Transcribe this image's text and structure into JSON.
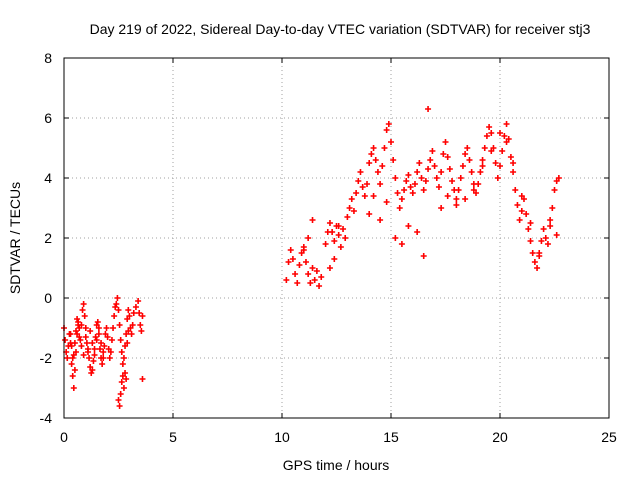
{
  "chart_data": {
    "type": "scatter",
    "title": "Day 219 of 2022, Sidereal Day-to-day VTEC variation (SDTVAR) for receiver stj3",
    "xlabel": "GPS time / hours",
    "ylabel": "SDTVAR / TECUs",
    "xlim": [
      0,
      25
    ],
    "ylim": [
      -4,
      8
    ],
    "xticks": [
      0,
      5,
      10,
      15,
      20,
      25
    ],
    "yticks": [
      -4,
      -2,
      0,
      2,
      4,
      6,
      8
    ],
    "grid": true,
    "marker": "+",
    "color": "#ff0000",
    "series": [
      {
        "name": "SDTVAR",
        "x": [
          0.0,
          0.05,
          0.1,
          0.15,
          0.2,
          0.25,
          0.3,
          0.35,
          0.4,
          0.45,
          0.5,
          0.55,
          0.6,
          0.65,
          0.7,
          0.75,
          0.8,
          0.85,
          0.9,
          0.95,
          1.0,
          1.05,
          1.1,
          1.15,
          1.2,
          1.25,
          1.3,
          1.35,
          1.4,
          1.45,
          1.5,
          1.55,
          1.6,
          1.65,
          1.7,
          1.75,
          1.8,
          1.85,
          1.9,
          1.95,
          2.0,
          2.05,
          2.1,
          2.15,
          2.2,
          2.25,
          2.3,
          2.35,
          2.4,
          2.45,
          2.5,
          2.55,
          2.6,
          2.65,
          2.7,
          2.75,
          2.8,
          2.85,
          2.9,
          2.95,
          3.0,
          3.05,
          3.1,
          3.15,
          3.2,
          3.3,
          3.4,
          3.45,
          3.5,
          3.55,
          3.6,
          0.3,
          0.35,
          0.4,
          0.45,
          0.5,
          0.55,
          0.6,
          0.65,
          0.7,
          0.8,
          0.9,
          1.0,
          1.1,
          1.2,
          1.3,
          1.4,
          1.5,
          1.6,
          1.7,
          1.8,
          2.5,
          2.55,
          2.6,
          2.65,
          2.7,
          2.75,
          2.8,
          2.85,
          2.9,
          2.95,
          3.6,
          10.2,
          10.3,
          10.4,
          10.5,
          10.6,
          10.7,
          10.8,
          10.9,
          11.0,
          11.1,
          11.2,
          11.3,
          11.4,
          11.5,
          11.6,
          11.7,
          11.8,
          12.0,
          12.1,
          12.2,
          12.3,
          12.4,
          12.5,
          12.6,
          12.7,
          12.8,
          12.9,
          13.0,
          13.1,
          13.2,
          13.3,
          13.4,
          13.5,
          13.6,
          13.7,
          13.8,
          13.9,
          14.0,
          14.1,
          14.2,
          14.3,
          14.4,
          14.5,
          14.6,
          14.7,
          14.8,
          14.9,
          15.0,
          15.1,
          15.2,
          15.3,
          15.4,
          15.5,
          15.6,
          15.7,
          15.8,
          15.9,
          16.0,
          16.1,
          16.2,
          16.3,
          16.4,
          16.5,
          16.6,
          16.7,
          16.8,
          16.9,
          17.0,
          17.1,
          17.2,
          17.3,
          17.4,
          17.5,
          17.6,
          17.7,
          17.8,
          17.9,
          18.0,
          18.1,
          18.2,
          18.3,
          18.4,
          18.5,
          18.6,
          18.7,
          18.8,
          18.9,
          19.0,
          19.1,
          19.2,
          19.3,
          19.4,
          19.5,
          19.6,
          19.7,
          19.8,
          19.9,
          20.0,
          20.1,
          20.2,
          20.3,
          20.4,
          20.5,
          20.6,
          20.7,
          20.8,
          20.9,
          21.0,
          21.1,
          21.2,
          21.3,
          21.4,
          21.5,
          21.6,
          21.7,
          21.8,
          21.9,
          22.0,
          22.1,
          22.2,
          22.3,
          22.4,
          22.5,
          22.6,
          22.7,
          11.0,
          11.2,
          11.4,
          12.2,
          12.4,
          12.6,
          14.0,
          14.2,
          14.5,
          14.8,
          15.2,
          15.5,
          15.8,
          16.2,
          16.5,
          16.7,
          17.3,
          17.6,
          18.0,
          18.4,
          18.8,
          19.2,
          19.6,
          20.0,
          20.3,
          20.6,
          21.0,
          21.4,
          21.8,
          22.3,
          22.6
        ],
        "y": [
          -1.0,
          -1.4,
          -1.8,
          -2.0,
          -1.6,
          -1.2,
          -1.5,
          -2.2,
          -2.6,
          -3.0,
          -2.4,
          -1.8,
          -1.2,
          -0.8,
          -1.0,
          -1.4,
          -0.9,
          -0.4,
          -0.2,
          -0.6,
          -1.0,
          -1.5,
          -1.8,
          -2.0,
          -2.3,
          -2.5,
          -2.4,
          -2.1,
          -1.7,
          -1.3,
          -0.9,
          -0.8,
          -1.2,
          -1.7,
          -2.0,
          -2.2,
          -2.0,
          -1.6,
          -1.2,
          -1.0,
          -1.3,
          -1.7,
          -2.0,
          -1.8,
          -1.4,
          -1.0,
          -0.6,
          -0.3,
          -0.2,
          0.0,
          -0.4,
          -0.9,
          -1.4,
          -1.8,
          -2.2,
          -2.0,
          -1.6,
          -1.2,
          -0.7,
          -0.4,
          -0.6,
          -1.0,
          -1.2,
          -0.9,
          -0.5,
          -0.3,
          -0.1,
          -0.5,
          -0.9,
          -1.1,
          -0.6,
          -1.2,
          -1.6,
          -2.0,
          -1.9,
          -1.5,
          -1.1,
          -0.7,
          -0.9,
          -1.3,
          -1.6,
          -1.9,
          -1.3,
          -1.7,
          -1.1,
          -1.5,
          -1.9,
          -1.4,
          -1.0,
          -1.5,
          -1.8,
          -3.4,
          -3.6,
          -3.2,
          -2.8,
          -2.6,
          -3.0,
          -2.5,
          -2.7,
          -1.5,
          -1.1,
          -2.7,
          0.6,
          1.2,
          1.6,
          1.3,
          0.8,
          0.5,
          1.1,
          1.5,
          1.7,
          1.2,
          0.8,
          0.5,
          1.0,
          0.6,
          0.9,
          0.4,
          0.7,
          1.8,
          2.2,
          2.5,
          2.2,
          1.9,
          2.4,
          2.1,
          1.7,
          2.3,
          2.0,
          2.7,
          3.0,
          3.3,
          2.9,
          3.5,
          3.9,
          4.2,
          3.7,
          3.4,
          3.8,
          4.5,
          4.8,
          5.0,
          4.6,
          4.2,
          3.8,
          4.4,
          5.0,
          5.6,
          5.8,
          5.2,
          4.6,
          4.0,
          3.5,
          3.0,
          3.3,
          3.6,
          3.9,
          4.1,
          3.7,
          3.5,
          3.8,
          4.2,
          4.5,
          4.0,
          3.6,
          3.9,
          4.3,
          4.6,
          4.9,
          4.4,
          4.0,
          3.7,
          4.2,
          4.8,
          5.2,
          4.7,
          4.3,
          3.9,
          3.6,
          3.3,
          3.6,
          4.0,
          4.4,
          4.8,
          5.0,
          4.6,
          4.2,
          3.8,
          3.5,
          3.8,
          4.2,
          4.6,
          5.0,
          5.4,
          5.7,
          5.5,
          5.0,
          4.5,
          4.0,
          4.4,
          4.9,
          5.4,
          5.8,
          5.3,
          4.7,
          4.2,
          3.6,
          3.1,
          2.6,
          2.9,
          3.3,
          2.8,
          2.3,
          1.9,
          1.5,
          1.2,
          1.0,
          1.4,
          1.9,
          2.3,
          2.0,
          1.8,
          2.4,
          3.0,
          3.6,
          3.9,
          4.0,
          1.6,
          2.0,
          2.6,
          1.0,
          1.3,
          2.4,
          2.8,
          3.4,
          2.6,
          3.2,
          2.0,
          1.8,
          2.4,
          2.2,
          1.4,
          6.3,
          3.0,
          3.4,
          3.1,
          3.3,
          3.6,
          4.4,
          4.9,
          5.5,
          5.2,
          4.5,
          3.4,
          2.5,
          1.5,
          2.6,
          2.1
        ]
      }
    ]
  }
}
